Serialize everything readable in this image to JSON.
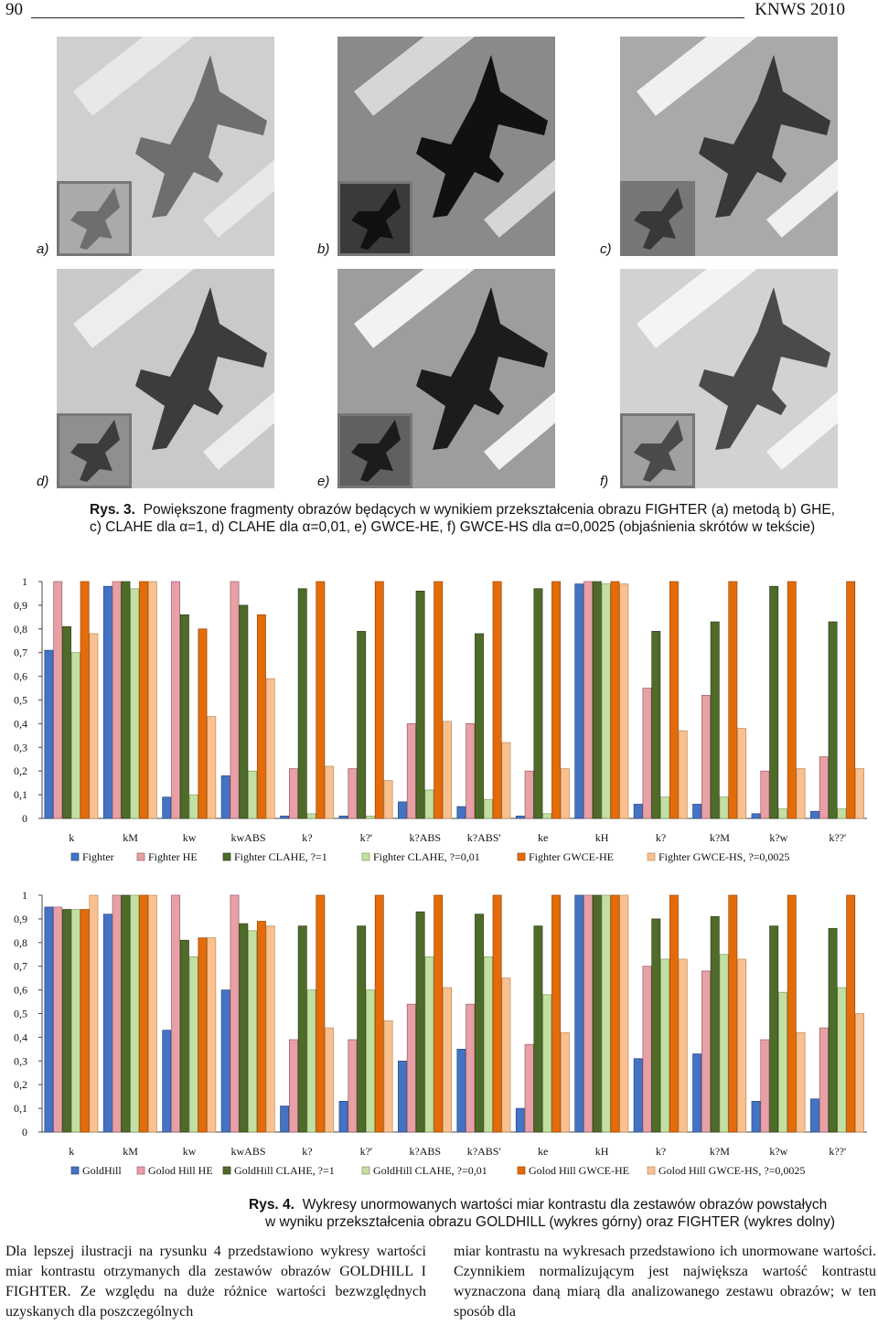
{
  "header": {
    "page_number": "90",
    "journal": "KNWS 2010"
  },
  "photos": {
    "labels": [
      "a)",
      "b)",
      "c)",
      "d)",
      "e)",
      "f)"
    ],
    "tones": [
      {
        "ground": "#cfcfcf",
        "road": "#e8e8e8",
        "jet": "#6e6e6e",
        "inset": "#aaaaaa"
      },
      {
        "ground": "#8a8a8a",
        "road": "#d6d6d6",
        "jet": "#111111",
        "inset": "#3a3a3a"
      },
      {
        "ground": "#a9a9a9",
        "road": "#f0f0f0",
        "jet": "#383838",
        "inset": "#777777"
      },
      {
        "ground": "#c9c9c9",
        "road": "#ededed",
        "jet": "#3c3c3c",
        "inset": "#8f8f8f"
      },
      {
        "ground": "#9d9d9d",
        "road": "#f2f2f2",
        "jet": "#1c1c1c",
        "inset": "#606060"
      },
      {
        "ground": "#d2d2d2",
        "road": "#f4f4f4",
        "jet": "#4a4a4a",
        "inset": "#a0a0a0"
      }
    ]
  },
  "figure3": {
    "label": "Rys. 3.",
    "line1": "Powiększone fragmenty obrazów będących w wynikiem przekształcenia obrazu FIGHTER (a) metodą b) GHE,",
    "line2": "c) CLAHE dla α=1, d) CLAHE dla α=0,01, e) GWCE-HE, f) GWCE-HS dla α=0,0025 (objaśnienia skrótów w tekście)"
  },
  "colors": {
    "series": [
      "#4472c4",
      "#e6a0a6",
      "#4f6b2a",
      "#c3dfa2",
      "#e36c0a",
      "#fbc08f"
    ],
    "border": [
      "#2b4a80",
      "#a05b61",
      "#2e4118",
      "#7f9a60",
      "#9a4506",
      "#b98a5a"
    ]
  },
  "chart_data": [
    {
      "type": "bar",
      "categories": [
        "k",
        "kM",
        "kw",
        "kwABS",
        "k?",
        "k?'",
        "k?ABS",
        "k?ABS'",
        "ke",
        "kH",
        "k?",
        "k?M",
        "k?w",
        "k??'"
      ],
      "ylim": [
        0,
        1
      ],
      "yticks": [
        "0",
        "0,1",
        "0,2",
        "0,3",
        "0,4",
        "0,5",
        "0,6",
        "0,7",
        "0,8",
        "0,9",
        "1"
      ],
      "grid": false,
      "legend_position": "bottom",
      "series": [
        {
          "name": "Fighter",
          "values": [
            0.71,
            0.98,
            0.09,
            0.18,
            0.01,
            0.01,
            0.07,
            0.05,
            0.01,
            0.99,
            0.06,
            0.06,
            0.02,
            0.03
          ]
        },
        {
          "name": "Fighter HE",
          "values": [
            1.0,
            1.0,
            1.0,
            1.0,
            0.21,
            0.21,
            0.4,
            0.4,
            0.2,
            1.0,
            0.55,
            0.52,
            0.2,
            0.26
          ]
        },
        {
          "name": "Fighter CLAHE, ?=1",
          "values": [
            0.81,
            1.0,
            0.86,
            0.9,
            0.97,
            0.79,
            0.96,
            0.78,
            0.97,
            1.0,
            0.79,
            0.83,
            0.98,
            0.83
          ]
        },
        {
          "name": "Fighter CLAHE, ?=0,01",
          "values": [
            0.7,
            0.97,
            0.1,
            0.2,
            0.02,
            0.01,
            0.12,
            0.08,
            0.02,
            0.99,
            0.09,
            0.09,
            0.04,
            0.04
          ]
        },
        {
          "name": "Fighter GWCE-HE",
          "values": [
            1.0,
            1.0,
            0.8,
            0.86,
            1.0,
            1.0,
            1.0,
            1.0,
            1.0,
            1.0,
            1.0,
            1.0,
            1.0,
            1.0
          ]
        },
        {
          "name": "Fighter GWCE-HS, ?=0,0025",
          "values": [
            0.78,
            1.0,
            0.43,
            0.59,
            0.22,
            0.16,
            0.41,
            0.32,
            0.21,
            0.99,
            0.37,
            0.38,
            0.21,
            0.21
          ]
        }
      ]
    },
    {
      "type": "bar",
      "categories": [
        "k",
        "kM",
        "kw",
        "kwABS",
        "k?",
        "k?'",
        "k?ABS",
        "k?ABS'",
        "ke",
        "kH",
        "k?",
        "k?M",
        "k?w",
        "k??'"
      ],
      "ylim": [
        0,
        1
      ],
      "yticks": [
        "0",
        "0,1",
        "0,2",
        "0,3",
        "0,4",
        "0,5",
        "0,6",
        "0,7",
        "0,8",
        "0,9",
        "1"
      ],
      "grid": false,
      "legend_position": "bottom",
      "series": [
        {
          "name": "GoldHill",
          "values": [
            0.95,
            0.92,
            0.43,
            0.6,
            0.11,
            0.13,
            0.3,
            0.35,
            0.1,
            1.0,
            0.31,
            0.33,
            0.13,
            0.14
          ]
        },
        {
          "name": "Golod Hill HE",
          "values": [
            0.95,
            1.0,
            1.0,
            1.0,
            0.39,
            0.39,
            0.54,
            0.54,
            0.37,
            1.0,
            0.7,
            0.68,
            0.39,
            0.44
          ]
        },
        {
          "name": "GoldHill CLAHE, ?=1",
          "values": [
            0.94,
            1.0,
            0.81,
            0.88,
            0.87,
            0.87,
            0.93,
            0.92,
            0.87,
            1.0,
            0.9,
            0.91,
            0.87,
            0.86
          ]
        },
        {
          "name": "GoldHill CLAHE, ?=0,01",
          "values": [
            0.94,
            1.0,
            0.74,
            0.85,
            0.6,
            0.6,
            0.74,
            0.74,
            0.58,
            1.0,
            0.73,
            0.75,
            0.59,
            0.61
          ]
        },
        {
          "name": "Golod Hill GWCE-HE",
          "values": [
            0.94,
            1.0,
            0.82,
            0.89,
            1.0,
            1.0,
            1.0,
            1.0,
            1.0,
            1.0,
            1.0,
            1.0,
            1.0,
            1.0
          ]
        },
        {
          "name": "Golod Hill GWCE-HS, ?=0,0025",
          "values": [
            1.0,
            1.0,
            0.82,
            0.87,
            0.44,
            0.47,
            0.61,
            0.65,
            0.42,
            1.0,
            0.73,
            0.73,
            0.42,
            0.5
          ]
        }
      ]
    }
  ],
  "figure4": {
    "label": "Rys. 4.",
    "line1": "Wykresy unormowanych wartości miar kontrastu dla zestawów obrazów powstałych",
    "line2": "w wyniku przekształcenia obrazu GOLDHILL (wykres górny) oraz FIGHTER (wykres dolny)"
  },
  "body": {
    "left": "Dla lepszej ilustracji na rysunku 4 przedstawiono wykresy wartości miar kontrastu otrzymanych dla zestawów obrazów GOLDHILL I FIGHTER. Ze względu na duże różnice wartości bezwzględnych uzyskanych dla poszczególnych",
    "right": "miar kontrastu na wykresach przedstawiono ich unormowane wartości. Czynnikiem normalizującym jest największa wartość kontrastu wyznaczona daną miarą dla analizowanego zestawu obrazów; w ten sposób dla"
  }
}
